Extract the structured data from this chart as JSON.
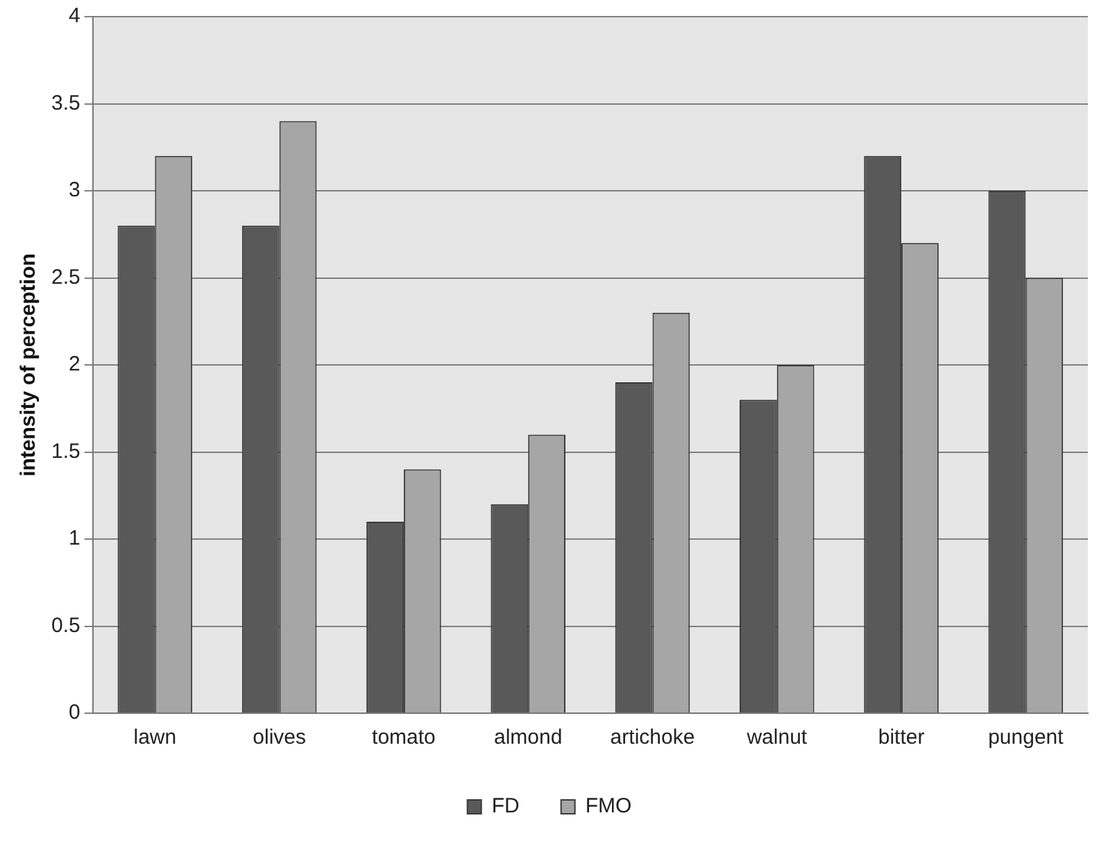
{
  "chart_data": {
    "type": "bar",
    "ylabel": "intensity of perception",
    "categories": [
      "lawn",
      "olives",
      "tomato",
      "almond",
      "artichoke",
      "walnut",
      "bitter",
      "pungent"
    ],
    "series": [
      {
        "name": "FD",
        "color": "#595959",
        "values": [
          2.8,
          2.8,
          1.1,
          1.2,
          1.9,
          1.8,
          3.2,
          3.0
        ]
      },
      {
        "name": "FMO",
        "color": "#a6a6a6",
        "values": [
          3.2,
          3.4,
          1.4,
          1.6,
          2.3,
          2.0,
          2.7,
          2.5
        ]
      }
    ],
    "ylim": [
      0,
      4
    ],
    "yticks": [
      0,
      0.5,
      1,
      1.5,
      2,
      2.5,
      3,
      3.5,
      4
    ],
    "grid": "y",
    "legend": "bottom"
  }
}
